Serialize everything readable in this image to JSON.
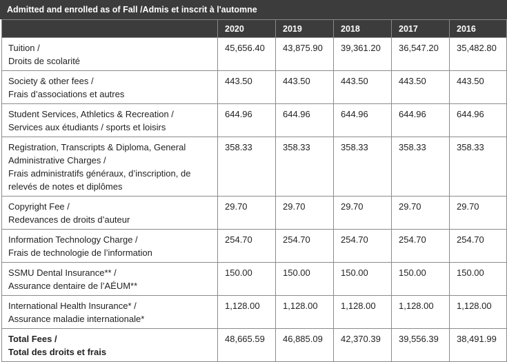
{
  "title": "Admitted and enrolled as of Fall /Admis et inscrit à l'automne",
  "years": [
    "2020",
    "2019",
    "2018",
    "2017",
    "2016"
  ],
  "rows": [
    {
      "label": [
        "Tuition /",
        "Droits de scolarité"
      ],
      "values": [
        "45,656.40",
        "43,875.90",
        "39,361.20",
        "36,547.20",
        "35,482.80"
      ]
    },
    {
      "label": [
        "Society & other fees /",
        "Frais d’associations et autres"
      ],
      "values": [
        "443.50",
        "443.50",
        "443.50",
        "443.50",
        "443.50"
      ]
    },
    {
      "label": [
        "Student Services, Athletics & Recreation /",
        "Services aux étudiants / sports et loisirs"
      ],
      "values": [
        "644.96",
        "644.96",
        "644.96",
        "644.96",
        "644.96"
      ]
    },
    {
      "label": [
        "Registration, Transcripts & Diploma, General",
        "Administrative Charges /",
        "Frais administratifs généraux, d’inscription, de",
        "relevés de notes et diplômes"
      ],
      "values": [
        "358.33",
        "358.33",
        "358.33",
        "358.33",
        "358.33"
      ]
    },
    {
      "label": [
        "Copyright Fee /",
        "Redevances de droits d’auteur"
      ],
      "values": [
        "29.70",
        "29.70",
        "29.70",
        "29.70",
        "29.70"
      ]
    },
    {
      "label": [
        "Information Technology Charge /",
        "Frais de technologie de l’information"
      ],
      "values": [
        "254.70",
        "254.70",
        "254.70",
        "254.70",
        "254.70"
      ]
    },
    {
      "label": [
        "SSMU Dental Insurance** /",
        "Assurance dentaire de l’AÉUM**"
      ],
      "values": [
        "150.00",
        "150.00",
        "150.00",
        "150.00",
        "150.00"
      ]
    },
    {
      "label": [
        "International Health Insurance* /",
        "Assurance maladie internationale*"
      ],
      "values": [
        "1,128.00",
        "1,128.00",
        "1,128.00",
        "1,128.00",
        "1,128.00"
      ]
    }
  ],
  "total": {
    "label": [
      "Total Fees /",
      "Total des droits et frais"
    ],
    "values": [
      "48,665.59",
      "46,885.09",
      "42,370.39",
      "39,556.39",
      "38,491.99"
    ]
  }
}
